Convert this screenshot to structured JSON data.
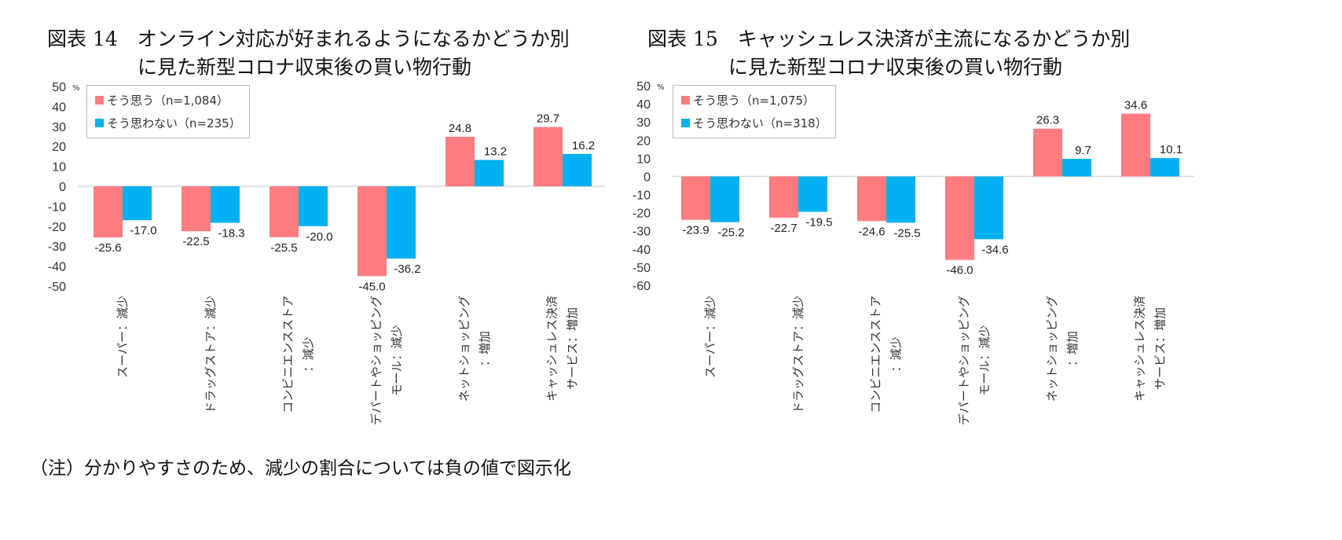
{
  "note": "（注）分かりやすさのため、減少の割合については負の値で図示化",
  "colors": {
    "agree": "#FF7C80",
    "disagree": "#00B0F0"
  },
  "chart_data": [
    {
      "type": "bar",
      "title_line1": "図表 14　オンライン対応が好まれるようになるかどうか別",
      "title_line2": "に見た新型コロナ収束後の買い物行動",
      "unit": "%",
      "ylim": [
        -50,
        50
      ],
      "yticks": [
        50,
        40,
        30,
        20,
        10,
        0,
        -10,
        -20,
        -30,
        -40,
        -50
      ],
      "grid": false,
      "legend_position": "top-left",
      "categories": [
        [
          "スーパー：減少"
        ],
        [
          "ドラッグストア：減少"
        ],
        [
          "コンビニエンスストア",
          "：減少"
        ],
        [
          "デパートやショッピング",
          "モール：減少"
        ],
        [
          "ネットショッピング",
          "：増加"
        ],
        [
          "キャッシュレス決済",
          "サービス：増加"
        ]
      ],
      "series": [
        {
          "name": "そう思う（n=1,084）",
          "values": [
            -25.6,
            -22.5,
            -25.5,
            -45.0,
            24.8,
            29.7
          ],
          "labels": [
            "-25.6",
            "-22.5",
            "-25.5",
            "-45.0",
            "24.8",
            "29.7"
          ]
        },
        {
          "name": "そう思わない（n=235）",
          "values": [
            -17.0,
            -18.3,
            -20.0,
            -36.2,
            13.2,
            16.2
          ],
          "labels": [
            "-17.0",
            "-18.3",
            "-20.0",
            "-36.2",
            "13.2",
            "16.2"
          ]
        }
      ]
    },
    {
      "type": "bar",
      "title_line1": "図表 15　キャッシュレス決済が主流になるかどうか別",
      "title_line2": "に見た新型コロナ収束後の買い物行動",
      "unit": "%",
      "ylim": [
        -60,
        50
      ],
      "yticks": [
        50,
        40,
        30,
        20,
        10,
        0,
        -10,
        -20,
        -30,
        -40,
        -50,
        -60
      ],
      "grid": false,
      "legend_position": "top-left",
      "categories": [
        [
          "スーパー：減少"
        ],
        [
          "ドラッグストア：減少"
        ],
        [
          "コンビニエンスストア",
          "：減少"
        ],
        [
          "デパートやショッピング",
          "モール：減少"
        ],
        [
          "ネットショッピング",
          "：増加"
        ],
        [
          "キャッシュレス決済",
          "サービス：増加"
        ]
      ],
      "series": [
        {
          "name": "そう思う（n=1,075）",
          "values": [
            -23.9,
            -22.7,
            -24.6,
            -46.0,
            26.3,
            34.6
          ],
          "labels": [
            "-23.9",
            "-22.7",
            "-24.6",
            "-46.0",
            "26.3",
            "34.6"
          ]
        },
        {
          "name": "そう思わない（n=318）",
          "values": [
            -25.2,
            -19.5,
            -25.5,
            -34.6,
            9.7,
            10.1
          ],
          "labels": [
            "-25.2",
            "-19.5",
            "-25.5",
            "-34.6",
            "9.7",
            "10.1"
          ]
        }
      ]
    }
  ]
}
